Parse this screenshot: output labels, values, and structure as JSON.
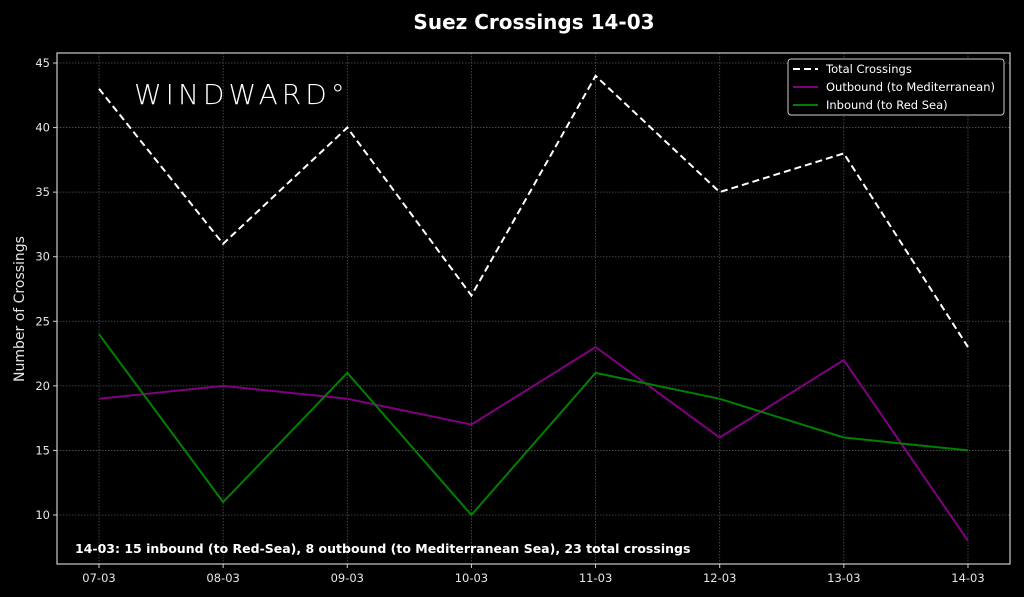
{
  "chart_data": {
    "type": "line",
    "title": "Suez Crossings 14-03",
    "xlabel": "",
    "ylabel": "Number of Crossings",
    "categories": [
      "07-03",
      "08-03",
      "09-03",
      "10-03",
      "11-03",
      "12-03",
      "13-03",
      "14-03"
    ],
    "series": [
      {
        "name": "Total Crossings",
        "values": [
          43,
          31,
          40,
          27,
          44,
          35,
          38,
          23
        ],
        "color": "#ffffff",
        "style": "dashed"
      },
      {
        "name": "Outbound (to Mediterranean)",
        "values": [
          19,
          20,
          19,
          17,
          23,
          16,
          22,
          8
        ],
        "color": "#800080",
        "style": "solid"
      },
      {
        "name": "Inbound (to Red Sea)",
        "values": [
          24,
          11,
          21,
          10,
          21,
          19,
          16,
          15
        ],
        "color": "#008000",
        "style": "solid"
      }
    ],
    "yticks": [
      10,
      15,
      20,
      25,
      30,
      35,
      40,
      45
    ],
    "ylim": [
      6.9,
      45.9
    ],
    "grid": true,
    "legend_position": "upper right",
    "annotation": "14-03: 15 inbound (to Red-Sea), 8 outbound (to Mediterranean Sea), 23 total crossings",
    "watermark": "WINDWARD°"
  },
  "colors": {
    "background": "#000000",
    "grid": "#555555",
    "axes": "#cccccc"
  }
}
